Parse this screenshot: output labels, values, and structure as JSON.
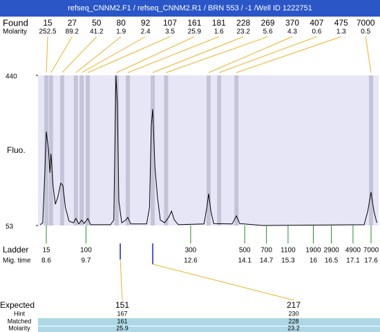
{
  "chart_data": {
    "type": "line",
    "title": "refseq_CNNM2.F1 / refseq_CNNM2.R1 / BRN 553 / -1 /Well ID 1222751",
    "found_label": "Found",
    "molarity_label": "Molarity",
    "peaks": {
      "sizes": [
        15,
        27,
        50,
        80,
        92,
        107,
        161,
        181,
        228,
        269,
        370,
        407,
        475,
        7000
      ],
      "molarities": [
        252.5,
        89.2,
        41.2,
        1.9,
        2.4,
        3.5,
        25.9,
        1.6,
        23.2,
        5.6,
        4.3,
        0.6,
        1.3,
        0.5
      ],
      "x": [
        8.6,
        8.73,
        9.04,
        9.42,
        9.58,
        9.75,
        10.55,
        10.86,
        11.55,
        11.92,
        13.1,
        13.39,
        13.87,
        17.6
      ]
    },
    "ylabel": "Fluo.",
    "ylim": [
      53,
      440
    ],
    "yticks": [
      53,
      440
    ],
    "xlim": [
      8.37,
      17.81
    ],
    "color": "#000000",
    "band_color": "#c4c4d8",
    "x": [
      8.43,
      8.5,
      8.56,
      8.6,
      8.66,
      8.7,
      8.73,
      8.79,
      8.85,
      8.92,
      9.0,
      9.06,
      9.13,
      9.23,
      9.35,
      9.42,
      9.5,
      9.58,
      9.65,
      9.75,
      9.83,
      10.38,
      10.47,
      10.53,
      10.57,
      10.61,
      10.69,
      10.8,
      10.86,
      10.94,
      11.38,
      11.46,
      11.51,
      11.55,
      11.61,
      11.68,
      11.76,
      11.88,
      11.99,
      12.07,
      12.15,
      12.26,
      12.97,
      13.05,
      13.1,
      13.16,
      13.24,
      13.75,
      13.87,
      13.96,
      14.6,
      17.41,
      17.51,
      17.6,
      17.68,
      17.76
    ],
    "values": [
      55,
      60,
      189,
      295,
      251,
      189,
      238,
      153,
      108,
      126,
      162,
      156,
      99,
      64,
      60,
      71,
      57,
      67,
      58,
      71,
      55,
      55,
      67,
      440,
      367,
      117,
      60,
      67,
      74,
      57,
      57,
      99,
      313,
      353,
      206,
      126,
      67,
      60,
      74,
      90,
      67,
      55,
      57,
      99,
      135,
      90,
      58,
      57,
      78,
      58,
      53,
      55,
      90,
      139,
      90,
      60
    ],
    "ladder_label": "Ladder",
    "mig_time_label": "Mig. time",
    "ladder": {
      "sizes": [
        15,
        100,
        300,
        500,
        700,
        1100,
        1900,
        2900,
        4900,
        7000
      ],
      "mig_times": [
        8.6,
        9.7,
        12.6,
        14.1,
        14.7,
        15.3,
        16,
        16.5,
        17.1,
        17.6
      ]
    },
    "expected_label": "Expected",
    "hint_label": "Hint",
    "matched_label": "Matched",
    "expected_molarity_label": "Molarity",
    "expected": {
      "sizes": [
        151,
        217
      ],
      "hints": [
        167,
        230
      ],
      "matched": [
        161,
        228
      ],
      "molarities": [
        25.9,
        23.2
      ],
      "x": [
        10.65,
        11.55
      ]
    }
  }
}
